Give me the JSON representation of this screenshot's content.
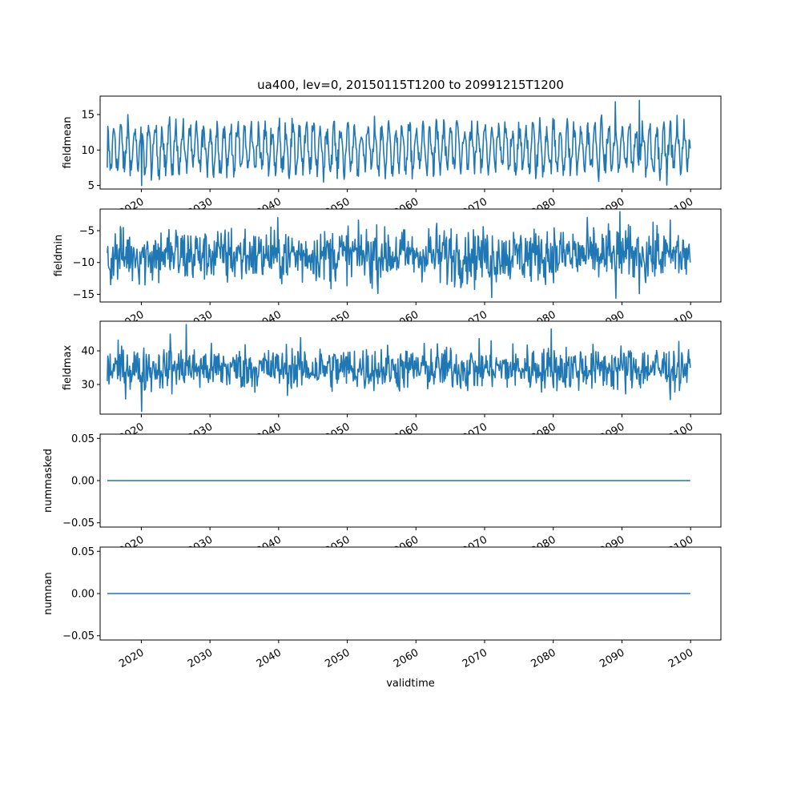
{
  "chart_data": {
    "type": "line",
    "title": "ua400, lev=0, 20150115T1200 to 20991215T1200",
    "xlabel": "validtime",
    "x_axis": {
      "kind": "date",
      "range": [
        "2014-01-01",
        "2104-06-01"
      ],
      "ticks": [
        "2020",
        "2030",
        "2040",
        "2050",
        "2060",
        "2070",
        "2080",
        "2090",
        "2100"
      ],
      "tick_values": [
        "2020-01-01",
        "2030-01-01",
        "2040-01-01",
        "2050-01-01",
        "2060-01-01",
        "2070-01-01",
        "2080-01-01",
        "2090-01-01",
        "2100-01-01"
      ]
    },
    "time_span": {
      "start": "2015-01-15T12:00",
      "end": "2099-12-15T12:00",
      "frequency": "monthly"
    },
    "line_color": "#1f77b4",
    "panels": [
      {
        "ylabel": "fieldmean",
        "ylim": [
          4.5,
          17.6
        ],
        "yticks": [
          5,
          10,
          15
        ],
        "ytick_labels": [
          "5",
          "10",
          "15"
        ],
        "pattern": {
          "kind": "seasonal",
          "mean": 10.2,
          "amplitude": 2.9,
          "noise": 0.9,
          "min": 5.0,
          "max": 17.0
        },
        "highlights": [
          {
            "date": "2015-01-15",
            "value": 7.5
          },
          {
            "date": "2020-01-15",
            "value": 5.0
          },
          {
            "date": "2018-01-15",
            "value": 15.0
          },
          {
            "date": "2089-01-15",
            "value": 16.8
          },
          {
            "date": "2092-07-15",
            "value": 17.0
          },
          {
            "date": "2099-12-15",
            "value": 10.2
          }
        ]
      },
      {
        "ylabel": "fieldmin",
        "ylim": [
          -16.2,
          -1.6
        ],
        "yticks": [
          -15,
          -10,
          -5
        ],
        "ytick_labels": [
          "−15",
          "−10",
          "−5"
        ],
        "pattern": {
          "kind": "noisy",
          "mean": -8.8,
          "amplitude": 0.8,
          "noise": 2.1,
          "min": -15.6,
          "max": -2.0
        },
        "highlights": [
          {
            "date": "2015-01-15",
            "value": -8.5
          },
          {
            "date": "2015-07-15",
            "value": -13.5
          },
          {
            "date": "2071-01-15",
            "value": -15.5
          },
          {
            "date": "2089-02-15",
            "value": -15.6
          },
          {
            "date": "2089-09-15",
            "value": -2.0
          },
          {
            "date": "2099-12-15",
            "value": -10.0
          }
        ]
      },
      {
        "ylabel": "fieldmax",
        "ylim": [
          21.2,
          48.8
        ],
        "yticks": [
          30,
          40
        ],
        "ytick_labels": [
          "30",
          "40"
        ],
        "pattern": {
          "kind": "noisy",
          "mean": 34.8,
          "amplitude": 0.8,
          "noise": 3.2,
          "min": 22.0,
          "max": 47.8
        },
        "highlights": [
          {
            "date": "2015-01-15",
            "value": 31.0
          },
          {
            "date": "2020-01-15",
            "value": 22.0
          },
          {
            "date": "2024-03-15",
            "value": 45.0
          },
          {
            "date": "2026-07-15",
            "value": 47.8
          },
          {
            "date": "2079-09-15",
            "value": 46.5
          },
          {
            "date": "2097-01-15",
            "value": 25.5
          },
          {
            "date": "2099-12-15",
            "value": 35.0
          }
        ]
      },
      {
        "ylabel": "nummasked",
        "ylim": [
          -0.055,
          0.055
        ],
        "yticks": [
          -0.05,
          0.0,
          0.05
        ],
        "ytick_labels": [
          "−0.05",
          "0.00",
          "0.05"
        ],
        "pattern": {
          "kind": "constant",
          "value": 0.0
        },
        "highlights": []
      },
      {
        "ylabel": "numnan",
        "ylim": [
          -0.055,
          0.055
        ],
        "yticks": [
          -0.05,
          0.0,
          0.05
        ],
        "ytick_labels": [
          "−0.05",
          "0.00",
          "0.05"
        ],
        "pattern": {
          "kind": "constant",
          "value": 0.0
        },
        "highlights": []
      }
    ]
  }
}
